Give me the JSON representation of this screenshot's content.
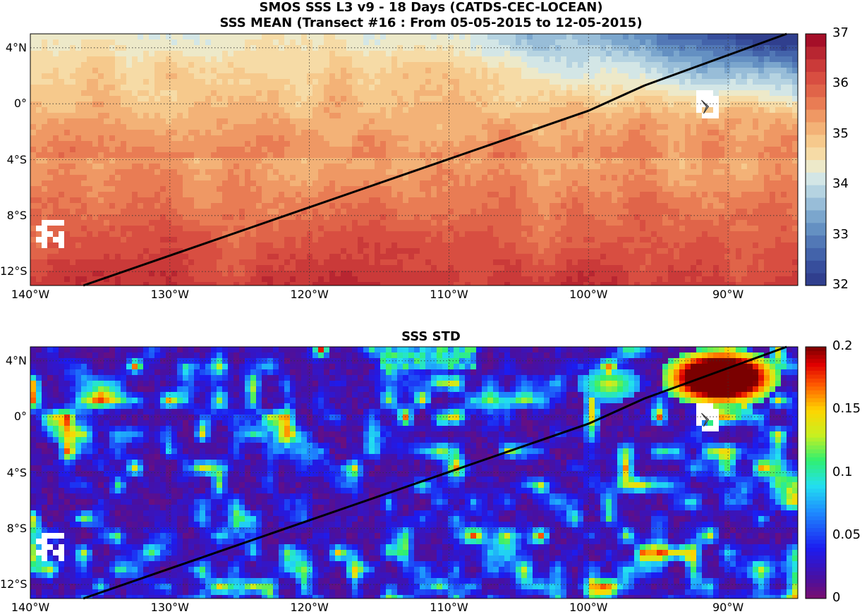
{
  "figure": {
    "title_line1": "SMOS SSS L3 v9 - 18 Days (CATDS-CEC-LOCEAN)",
    "title_line2": "SSS MEAN (Transect #16 : From 05-05-2015 to 12-05-2015)"
  },
  "chart_data": [
    {
      "type": "heatmap",
      "title": "SSS MEAN (Transect #16 : From 05-05-2015 to 12-05-2015)",
      "xlim": [
        -140,
        -85
      ],
      "ylim": [
        -13,
        5
      ],
      "x_ticks": [
        {
          "value": -140,
          "label": "140°W"
        },
        {
          "value": -130,
          "label": "130°W"
        },
        {
          "value": -120,
          "label": "120°W"
        },
        {
          "value": -110,
          "label": "110°W"
        },
        {
          "value": -100,
          "label": "100°W"
        },
        {
          "value": -90,
          "label": "90°W"
        }
      ],
      "y_ticks": [
        {
          "value": 4,
          "label": "4°N"
        },
        {
          "value": 0,
          "label": "0°"
        },
        {
          "value": -4,
          "label": "4°S"
        },
        {
          "value": -8,
          "label": "8°S"
        },
        {
          "value": -12,
          "label": "12°S"
        }
      ],
      "grid": true,
      "colorbar": {
        "min": 32,
        "max": 37,
        "ticks": [
          "37",
          "36",
          "35",
          "34",
          "33",
          "32"
        ],
        "colormap": "red-yellow-blue"
      },
      "transect": [
        [
          -136.2,
          -13
        ],
        [
          -100,
          -0.5
        ],
        [
          -96,
          1.3
        ],
        [
          -85.8,
          5
        ]
      ],
      "field": "meridional salinity gradient: ~36.2 psu at 12°S rising from 35 near equator to ~34.5 at 4°N in the west and ~32.5 in the northeast (Panama Bight)"
    },
    {
      "type": "heatmap",
      "title": "SSS STD",
      "xlim": [
        -140,
        -85
      ],
      "ylim": [
        -13,
        5
      ],
      "x_ticks": [
        {
          "value": -140,
          "label": "140°W"
        },
        {
          "value": -130,
          "label": "130°W"
        },
        {
          "value": -120,
          "label": "120°W"
        },
        {
          "value": -110,
          "label": "110°W"
        },
        {
          "value": -100,
          "label": "100°W"
        },
        {
          "value": -90,
          "label": "90°W"
        }
      ],
      "y_ticks": [
        {
          "value": 4,
          "label": "4°N"
        },
        {
          "value": 0,
          "label": "0°"
        },
        {
          "value": -4,
          "label": "4°S"
        },
        {
          "value": -8,
          "label": "8°S"
        },
        {
          "value": -12,
          "label": "12°S"
        }
      ],
      "grid": true,
      "colorbar": {
        "min": 0,
        "max": 0.2,
        "ticks": [
          "0.2",
          "0.15",
          "0.1",
          "0.05",
          "0"
        ],
        "colormap": "jet"
      },
      "transect": [
        [
          -136.2,
          -13
        ],
        [
          -100,
          -0.5
        ],
        [
          -96,
          1.3
        ],
        [
          -85.8,
          5
        ]
      ],
      "field": "mostly low std (0-0.03); patches 0.05-0.12 scattered; high std (>0.2) near 92°W-88°W, 2°N-4°N"
    }
  ]
}
